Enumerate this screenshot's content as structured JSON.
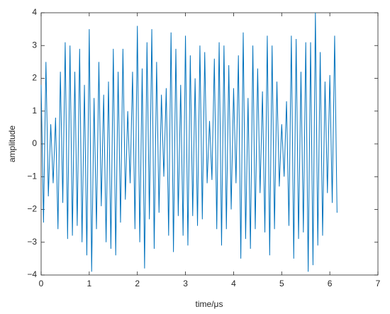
{
  "chart_data": {
    "type": "line",
    "xlabel": "time/μs",
    "ylabel": "amplitude",
    "x": [
      0,
      0.05,
      0.1,
      0.15,
      0.2,
      0.25,
      0.3,
      0.35,
      0.4,
      0.45,
      0.5,
      0.55,
      0.6,
      0.65,
      0.7,
      0.75,
      0.8,
      0.85,
      0.9,
      0.95,
      1,
      1.05,
      1.1,
      1.15,
      1.2,
      1.25,
      1.3,
      1.35,
      1.4,
      1.45,
      1.5,
      1.55,
      1.6,
      1.65,
      1.7,
      1.75,
      1.8,
      1.85,
      1.9,
      1.95,
      2,
      2.05,
      2.1,
      2.15,
      2.2,
      2.25,
      2.3,
      2.35,
      2.4,
      2.45,
      2.5,
      2.55,
      2.6,
      2.65,
      2.7,
      2.75,
      2.8,
      2.85,
      2.9,
      2.95,
      3,
      3.05,
      3.1,
      3.15,
      3.2,
      3.25,
      3.3,
      3.35,
      3.4,
      3.45,
      3.5,
      3.55,
      3.6,
      3.65,
      3.7,
      3.75,
      3.8,
      3.85,
      3.9,
      3.95,
      4,
      4.05,
      4.1,
      4.15,
      4.2,
      4.25,
      4.3,
      4.35,
      4.4,
      4.45,
      4.5,
      4.55,
      4.6,
      4.65,
      4.7,
      4.75,
      4.8,
      4.85,
      4.9,
      4.95,
      5,
      5.05,
      5.1,
      5.15,
      5.2,
      5.25,
      5.3,
      5.35,
      5.4,
      5.45,
      5.5,
      5.55,
      5.6,
      5.65,
      5.7,
      5.75,
      5.8,
      5.85,
      5.9,
      5.95,
      6,
      6.05,
      6.1,
      6.15
    ],
    "series": [
      {
        "color": "#0072bd",
        "values": [
          1.8,
          -2.4,
          2.5,
          -1.6,
          0.6,
          -1.2,
          0.8,
          -2.6,
          2.2,
          -1.8,
          3.1,
          -2.9,
          3.0,
          -2.8,
          2.2,
          -2.5,
          2.9,
          -3.0,
          1.8,
          -3.4,
          3.5,
          -3.9,
          1.4,
          -2.6,
          2.5,
          -1.9,
          1.5,
          -3.0,
          1.9,
          -3.2,
          2.9,
          -3.4,
          2.2,
          -2.4,
          2.9,
          -1.7,
          1.0,
          -1.2,
          2.2,
          -2.6,
          3.6,
          -3.0,
          2.3,
          -3.8,
          3.1,
          -2.3,
          3.5,
          -3.2,
          2.5,
          -2.1,
          1.5,
          -1.0,
          1.7,
          -2.8,
          3.4,
          -3.3,
          2.9,
          -2.2,
          1.8,
          -2.8,
          3.3,
          -3.1,
          2.7,
          -2.2,
          2.0,
          -2.5,
          3.0,
          -2.3,
          2.8,
          -1.2,
          0.7,
          -1.1,
          2.6,
          -2.6,
          3.1,
          -3.1,
          3.0,
          -2.6,
          2.4,
          -2.0,
          1.7,
          -1.2,
          2.7,
          -3.5,
          3.4,
          -2.9,
          1.4,
          -3.2,
          3.0,
          -2.6,
          2.3,
          -1.5,
          1.6,
          -2.7,
          3.3,
          -3.4,
          3.0,
          -2.6,
          1.9,
          -1.3,
          0.6,
          -1.0,
          1.3,
          -2.5,
          3.3,
          -3.5,
          3.2,
          -2.9,
          2.2,
          -2.7,
          3.1,
          -3.9,
          3.1,
          -3.7,
          4.0,
          -3.1,
          2.8,
          -2.8,
          1.9,
          -1.5,
          2.1,
          -1.8,
          3.3,
          -2.1
        ]
      }
    ],
    "xlim": [
      0,
      7
    ],
    "xticks": [
      0,
      1,
      2,
      3,
      4,
      5,
      6,
      7
    ],
    "ylim": [
      -4,
      4
    ],
    "yticks": [
      {
        "value": -4,
        "label": "−4"
      },
      {
        "value": -3,
        "label": "−3"
      },
      {
        "value": -2,
        "label": "−2"
      },
      {
        "value": -1,
        "label": "−1"
      },
      0,
      1,
      2,
      3,
      4
    ]
  }
}
